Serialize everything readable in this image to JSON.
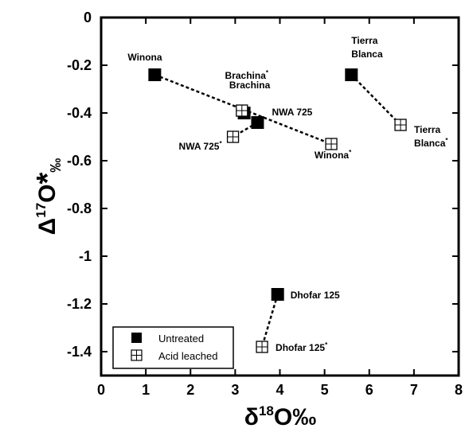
{
  "chart_data": {
    "type": "scatter",
    "xlim": [
      0,
      8
    ],
    "ylim": [
      -1.5,
      0
    ],
    "x_ticks": [
      "0",
      "1",
      "2",
      "3",
      "4",
      "5",
      "6",
      "7",
      "8"
    ],
    "y_ticks": [
      "0",
      "-0.2",
      "-0.4",
      "-0.6",
      "-0.8",
      "-1",
      "-1.2",
      "-1.4"
    ],
    "xlabel": {
      "base": "δ",
      "sup": "18",
      "rest": "O‰"
    },
    "ylabel": {
      "base": "Δ",
      "sup": "17",
      "rest": "O",
      "star": "*",
      "sub": "‰"
    },
    "grid": false,
    "legend_position": "bottom-left",
    "series": [
      {
        "name": "Untreated",
        "marker": "filled-square",
        "points": [
          {
            "label": "Winona",
            "x": 1.2,
            "y": -0.24
          },
          {
            "label": "Brachina",
            "x": 3.2,
            "y": -0.4
          },
          {
            "label": "NWA 725",
            "x": 3.5,
            "y": -0.44
          },
          {
            "label": "Tierra Blanca",
            "x": 5.6,
            "y": -0.24
          },
          {
            "label": "Dhofar 125",
            "x": 3.95,
            "y": -1.16
          }
        ]
      },
      {
        "name": "Acid leached",
        "marker": "open-crossed-square",
        "points": [
          {
            "label": "Winona*",
            "x": 5.15,
            "y": -0.53
          },
          {
            "label": "Brachina*",
            "x": 3.15,
            "y": -0.39
          },
          {
            "label": "NWA 725*",
            "x": 2.95,
            "y": -0.5
          },
          {
            "label": "Tierra Blanca*",
            "x": 6.7,
            "y": -0.45
          },
          {
            "label": "Dhofar 125*",
            "x": 3.6,
            "y": -1.38
          }
        ]
      }
    ],
    "connections": [
      [
        "Winona",
        "Winona*"
      ],
      [
        "Brachina",
        "Brachina*"
      ],
      [
        "NWA 725",
        "NWA 725*"
      ],
      [
        "Tierra Blanca",
        "Tierra Blanca*"
      ],
      [
        "Dhofar 125",
        "Dhofar 125*"
      ]
    ],
    "legend": [
      {
        "name": "Untreated",
        "marker": "filled-square"
      },
      {
        "name": "Acid leached",
        "marker": "open-crossed-square"
      }
    ]
  }
}
